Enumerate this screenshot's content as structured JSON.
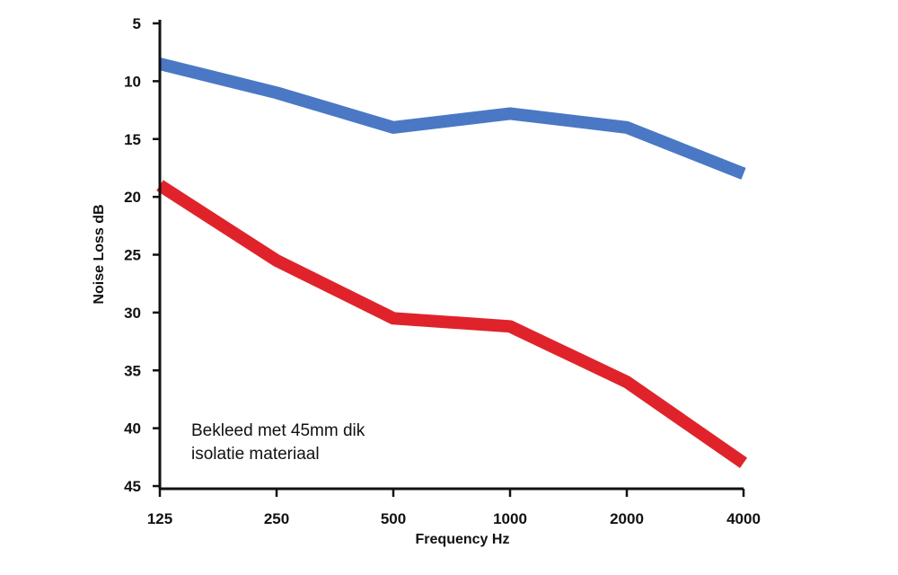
{
  "chart_data": {
    "type": "line",
    "title": "",
    "xlabel": "Frequency Hz",
    "ylabel": "Noise Loss dB",
    "categories": [
      "125",
      "250",
      "500",
      "1000",
      "2000",
      "4000"
    ],
    "y_ticks": [
      "5",
      "10",
      "15",
      "20",
      "25",
      "30",
      "35",
      "40",
      "45"
    ],
    "ylim": [
      5,
      45
    ],
    "y_inverted": true,
    "grid": false,
    "annotation": [
      "Bekleed met 45mm dik",
      "isolatie materiaal"
    ],
    "series": [
      {
        "name": "blue",
        "color": "#4a78c4",
        "values": [
          8.5,
          11,
          14,
          12.8,
          14,
          18
        ]
      },
      {
        "name": "red",
        "color": "#e0232b",
        "values": [
          19,
          25.5,
          30.5,
          31.2,
          36,
          43
        ]
      }
    ]
  }
}
